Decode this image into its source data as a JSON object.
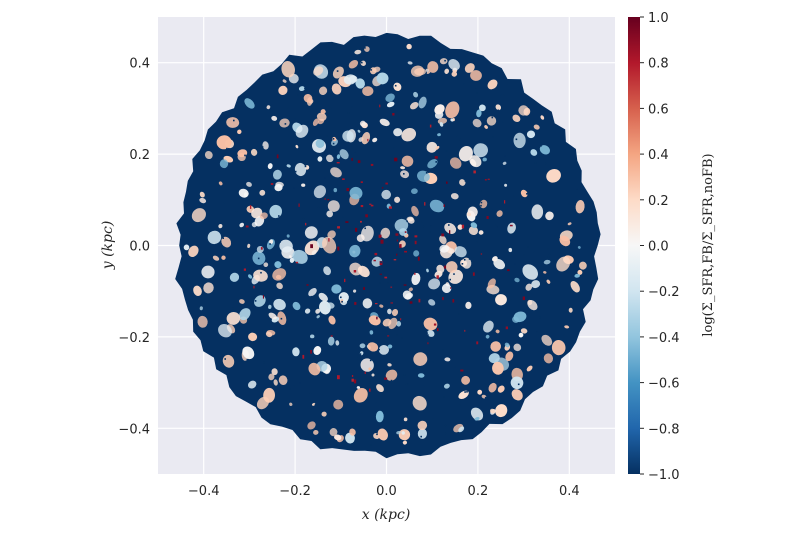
{
  "chart_data": {
    "type": "heatmap",
    "xlabel": "x (kpc)",
    "ylabel": "y (kpc)",
    "colorbar_label": "log(Σ_SFR,FB/Σ_SFR,noFB)",
    "xlim": [
      -0.5,
      0.5
    ],
    "ylim": [
      -0.5,
      0.5
    ],
    "x_ticks": [
      -0.4,
      -0.2,
      0.0,
      0.2,
      0.4
    ],
    "x_tick_labels": [
      "−0.4",
      "−0.2",
      "0.0",
      "0.2",
      "0.4"
    ],
    "y_ticks": [
      -0.4,
      -0.2,
      0.0,
      0.2,
      0.4
    ],
    "y_tick_labels": [
      "−0.4",
      "−0.2",
      "0.0",
      "0.2",
      "0.4"
    ],
    "colorbar_range": [
      -1.0,
      1.0
    ],
    "colorbar_ticks": [
      1.0,
      0.8,
      0.6,
      0.4,
      0.2,
      0.0,
      -0.2,
      -0.4,
      -0.6,
      -0.8,
      -1.0
    ],
    "colorbar_tick_labels": [
      "1.0",
      "0.8",
      "0.6",
      "0.4",
      "0.2",
      "0.0",
      "−0.2",
      "−0.4",
      "−0.6",
      "−0.8",
      "−1.0"
    ],
    "colormap": "RdBu_r",
    "disk_center": [
      0.0,
      0.0
    ],
    "disk_radius": 0.46,
    "grid": true,
    "background_color": "#EAEAF2",
    "grid_color": "#FFFFFF",
    "dominant_value": -1.0
  }
}
